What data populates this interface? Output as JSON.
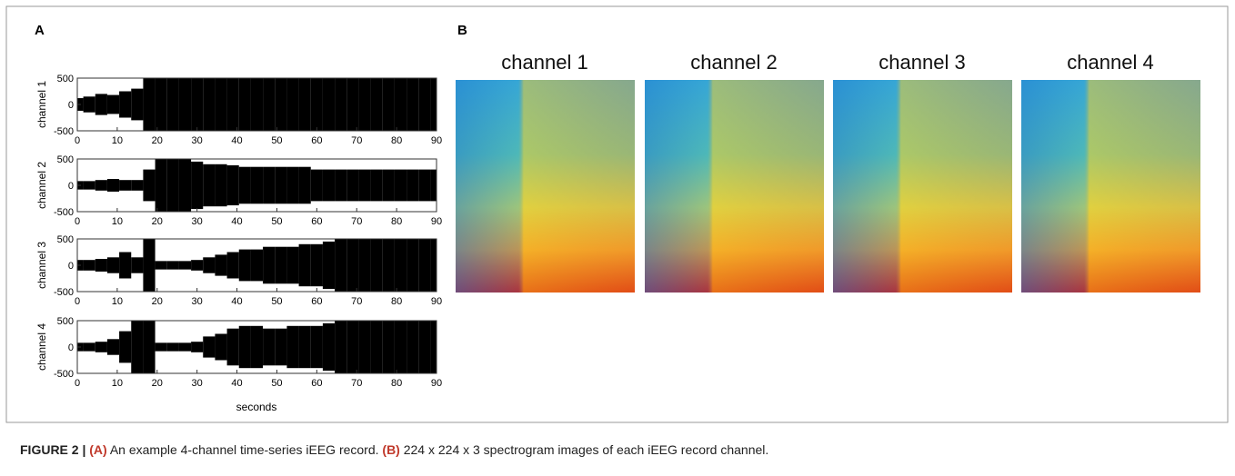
{
  "panel_a": {
    "label": "A",
    "xlabel": "seconds",
    "xlim": [
      0,
      90
    ],
    "xticks": [
      0,
      10,
      20,
      30,
      40,
      50,
      60,
      70,
      80,
      90
    ],
    "ylim": [
      -500,
      500
    ],
    "yticks": [
      500,
      0,
      -500
    ],
    "x": [
      0,
      3,
      6,
      9,
      12,
      15,
      18,
      21,
      24,
      27,
      30,
      33,
      36,
      39,
      42,
      45,
      48,
      51,
      54,
      57,
      60,
      63,
      66,
      69,
      72,
      75,
      78,
      81,
      84,
      87,
      90
    ],
    "channels": [
      {
        "name": "channel 1",
        "envelope": [
          120,
          150,
          200,
          180,
          250,
          300,
          500,
          500,
          500,
          500,
          500,
          500,
          500,
          500,
          500,
          500,
          500,
          500,
          500,
          500,
          500,
          500,
          500,
          500,
          500,
          500,
          500,
          500,
          500,
          500,
          500
        ]
      },
      {
        "name": "channel 2",
        "envelope": [
          80,
          80,
          100,
          120,
          100,
          100,
          300,
          500,
          500,
          500,
          450,
          400,
          400,
          380,
          350,
          350,
          350,
          350,
          350,
          350,
          300,
          300,
          300,
          300,
          300,
          300,
          300,
          300,
          300,
          300,
          300
        ]
      },
      {
        "name": "channel 3",
        "envelope": [
          100,
          100,
          120,
          150,
          250,
          150,
          500,
          80,
          80,
          80,
          100,
          150,
          200,
          250,
          300,
          300,
          350,
          350,
          350,
          400,
          400,
          450,
          500,
          500,
          500,
          500,
          500,
          500,
          500,
          500,
          500
        ]
      },
      {
        "name": "channel 4",
        "envelope": [
          80,
          80,
          100,
          150,
          300,
          500,
          500,
          80,
          80,
          80,
          100,
          200,
          250,
          350,
          400,
          400,
          350,
          350,
          400,
          400,
          400,
          450,
          500,
          500,
          500,
          500,
          500,
          500,
          500,
          500,
          500
        ]
      }
    ]
  },
  "panel_b": {
    "label": "B",
    "images": [
      {
        "title": "channel 1"
      },
      {
        "title": "channel 2"
      },
      {
        "title": "channel 3"
      },
      {
        "title": "channel 4"
      }
    ]
  },
  "caption": {
    "figure": "FIGURE 2 |",
    "a_tag": "(A)",
    "a_text": "An example 4-channel time-series iEEG record.",
    "b_tag": "(B)",
    "b_text": "224 x 224 x 3 spectrogram images of each iEEG record channel."
  }
}
